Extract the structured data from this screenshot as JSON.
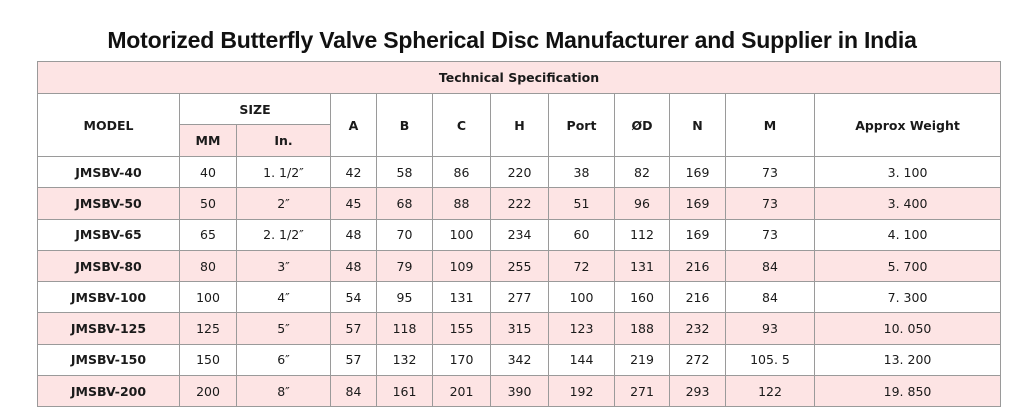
{
  "title": "Motorized Butterfly Valve Spherical Disc Manufacturer and Supplier in India",
  "table": {
    "caption": "Technical Specification",
    "headers": {
      "model": "MODEL",
      "size": "SIZE",
      "mm": "MM",
      "in": "In.",
      "a": "A",
      "b": "B",
      "c": "C",
      "h": "H",
      "port": "Port",
      "od": "ØD",
      "n": "N",
      "m": "M",
      "weight": "Approx Weight"
    },
    "rows": [
      {
        "model": "JMSBV-40",
        "mm": "40",
        "in": "1. 1/2″",
        "a": "42",
        "b": "58",
        "c": "86",
        "h": "220",
        "port": "38",
        "od": "82",
        "n": "169",
        "m": "73",
        "weight": "3. 100"
      },
      {
        "model": "JMSBV-50",
        "mm": "50",
        "in": "2″",
        "a": "45",
        "b": "68",
        "c": "88",
        "h": "222",
        "port": "51",
        "od": "96",
        "n": "169",
        "m": "73",
        "weight": "3. 400"
      },
      {
        "model": "JMSBV-65",
        "mm": "65",
        "in": "2. 1/2″",
        "a": "48",
        "b": "70",
        "c": "100",
        "h": "234",
        "port": "60",
        "od": "112",
        "n": "169",
        "m": "73",
        "weight": "4. 100"
      },
      {
        "model": "JMSBV-80",
        "mm": "80",
        "in": "3″",
        "a": "48",
        "b": "79",
        "c": "109",
        "h": "255",
        "port": "72",
        "od": "131",
        "n": "216",
        "m": "84",
        "weight": "5. 700"
      },
      {
        "model": "JMSBV-100",
        "mm": "100",
        "in": "4″",
        "a": "54",
        "b": "95",
        "c": "131",
        "h": "277",
        "port": "100",
        "od": "160",
        "n": "216",
        "m": "84",
        "weight": "7. 300"
      },
      {
        "model": "JMSBV-125",
        "mm": "125",
        "in": "5″",
        "a": "57",
        "b": "118",
        "c": "155",
        "h": "315",
        "port": "123",
        "od": "188",
        "n": "232",
        "m": "93",
        "weight": "10. 050"
      },
      {
        "model": "JMSBV-150",
        "mm": "150",
        "in": "6″",
        "a": "57",
        "b": "132",
        "c": "170",
        "h": "342",
        "port": "144",
        "od": "219",
        "n": "272",
        "m": "105. 5",
        "weight": "13. 200"
      },
      {
        "model": "JMSBV-200",
        "mm": "200",
        "in": "8″",
        "a": "84",
        "b": "161",
        "c": "201",
        "h": "390",
        "port": "192",
        "od": "271",
        "n": "293",
        "m": "122",
        "weight": "19. 850"
      }
    ],
    "colors": {
      "stripe": "#fde4e4",
      "border": "#9a9a9a"
    }
  }
}
